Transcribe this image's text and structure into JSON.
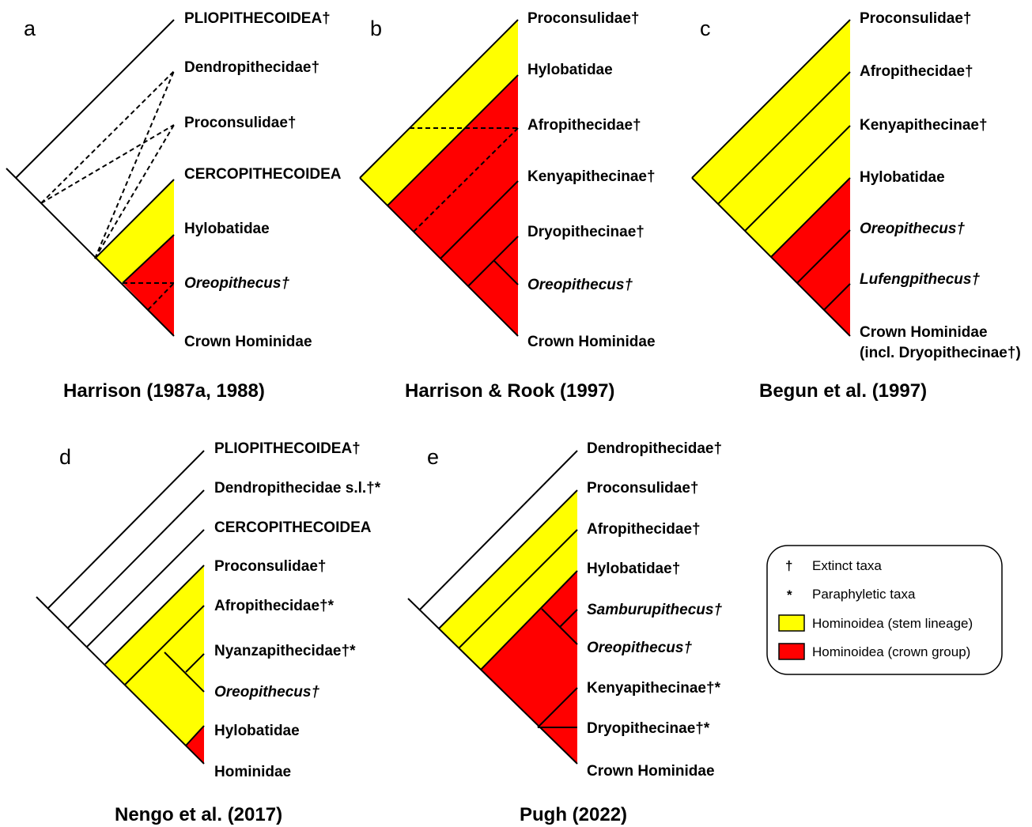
{
  "colors": {
    "stem": "#ffff00",
    "crown": "#ff0000",
    "line": "#000000"
  },
  "panels": {
    "a": {
      "letter": "a",
      "caption": "Harrison (1987a, 1988)",
      "taxa": [
        "PLIOPITHECOIDEA†",
        "Dendropithecidae†",
        "Proconsulidae†",
        "CERCOPITHECOIDEA",
        "Hylobatidae",
        "Oreopithecus†",
        "Crown Hominidae"
      ]
    },
    "b": {
      "letter": "b",
      "caption": "Harrison & Rook (1997)",
      "taxa": [
        "Proconsulidae†",
        "Hylobatidae",
        "Afropithecidae†",
        "Kenyapithecinae†",
        "Dryopithecinae†",
        "Oreopithecus†",
        "Crown Hominidae"
      ]
    },
    "c": {
      "letter": "c",
      "caption": "Begun et al. (1997)",
      "taxa": [
        "Proconsulidae†",
        "Afropithecidae†",
        "Kenyapithecinae†",
        "Hylobatidae",
        "Oreopithecus†",
        "Lufengpithecus†",
        "Crown Hominidae",
        "(incl. Dryopithecinae†)"
      ]
    },
    "d": {
      "letter": "d",
      "caption": "Nengo et al. (2017)",
      "taxa": [
        "PLIOPITHECOIDEA†",
        "Dendropithecidae s.l.†*",
        "CERCOPITHECOIDEA",
        "Proconsulidae†",
        "Afropithecidae†*",
        "Nyanzapithecidae†*",
        "Oreopithecus†",
        "Hylobatidae",
        "Hominidae"
      ]
    },
    "e": {
      "letter": "e",
      "caption": "Pugh (2022)",
      "taxa": [
        "Dendropithecidae†",
        "Proconsulidae†",
        "Afropithecidae†",
        "Hylobatidae†",
        "Samburupithecus†",
        "Oreopithecus†",
        "Kenyapithecinae†*",
        "Dryopithecinae†*",
        "Crown Hominidae"
      ]
    }
  },
  "legend": {
    "items": [
      {
        "symbol": "†",
        "label": "Extinct taxa"
      },
      {
        "symbol": "*",
        "label": "Paraphyletic taxa"
      },
      {
        "swatch": "stem",
        "label": "Hominoidea (stem lineage)"
      },
      {
        "swatch": "crown",
        "label": "Hominoidea (crown group)"
      }
    ]
  }
}
